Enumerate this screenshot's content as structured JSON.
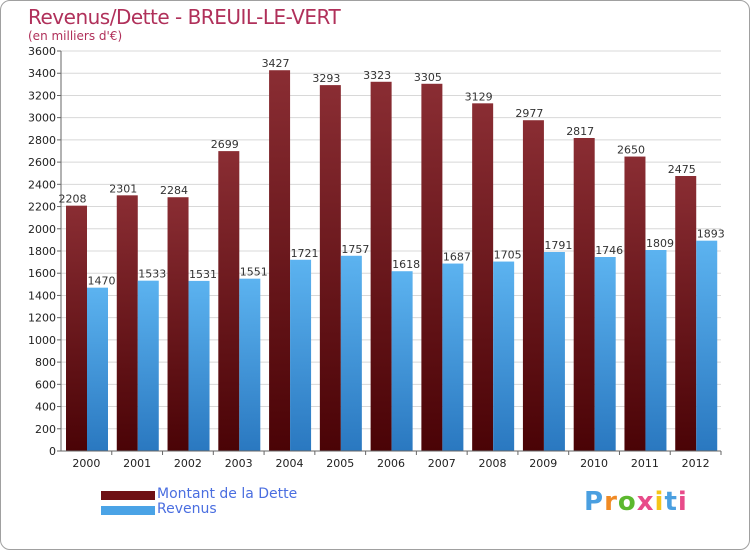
{
  "header": {
    "title": "Revenus/Dette - BREUIL-LE-VERT",
    "subtitle": "(en milliers d'€)"
  },
  "chart_data": {
    "type": "bar",
    "categories": [
      "2000",
      "2001",
      "2002",
      "2003",
      "2004",
      "2005",
      "2006",
      "2007",
      "2008",
      "2009",
      "2010",
      "2011",
      "2012"
    ],
    "series": [
      {
        "name": "Montant de la Dette",
        "color": "#6e1014",
        "values": [
          2208,
          2301,
          2284,
          2699,
          3427,
          3293,
          3323,
          3305,
          3129,
          2977,
          2817,
          2650,
          2475
        ]
      },
      {
        "name": "Revenus",
        "color": "#4aa3e6",
        "values": [
          1470,
          1533,
          1531,
          1551,
          1721,
          1757,
          1618,
          1687,
          1705,
          1791,
          1746,
          1809,
          1893
        ]
      }
    ],
    "ylim": [
      0,
      3600
    ],
    "yticks": [
      0,
      200,
      400,
      600,
      800,
      1000,
      1200,
      1400,
      1600,
      1800,
      2000,
      2200,
      2400,
      2600,
      2800,
      3000,
      3200,
      3400,
      3600
    ],
    "grid": true,
    "legend_position": "bottom-left"
  },
  "legend": {
    "items": [
      {
        "label": "Montant de la Dette",
        "color": "#6e1014"
      },
      {
        "label": "Revenus",
        "color": "#4aa3e6"
      }
    ]
  },
  "logo": {
    "letters": [
      "P",
      "r",
      "o",
      "x",
      "i",
      "t",
      "i"
    ],
    "colors": [
      "#4a9fe0",
      "#f08a24",
      "#5cb82e",
      "#e84b8a",
      "#f5c518",
      "#4a9fe0",
      "#e84b8a"
    ]
  }
}
